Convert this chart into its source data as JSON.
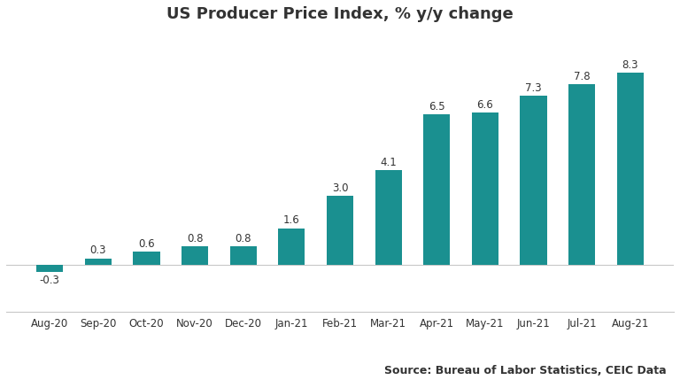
{
  "title": "US Producer Price Index, % y/y change",
  "categories": [
    "Aug-20",
    "Sep-20",
    "Oct-20",
    "Nov-20",
    "Dec-20",
    "Jan-21",
    "Feb-21",
    "Mar-21",
    "Apr-21",
    "May-21",
    "Jun-21",
    "Jul-21",
    "Aug-21"
  ],
  "values": [
    -0.3,
    0.3,
    0.6,
    0.8,
    0.8,
    1.6,
    3.0,
    4.1,
    6.5,
    6.6,
    7.3,
    7.8,
    8.3
  ],
  "bar_color": "#1a9090",
  "label_color": "#333333",
  "background_color": "#ffffff",
  "grid_color": "#c8c8c8",
  "source_text": "Source: Bureau of Labor Statistics, CEIC Data",
  "ylim_min": -2.0,
  "ylim_max": 10.0,
  "yticks": [
    -2,
    -1,
    0,
    1,
    2,
    3,
    4,
    5,
    6,
    7,
    8,
    9,
    10
  ],
  "title_fontsize": 13,
  "label_fontsize": 8.5,
  "tick_fontsize": 8.5,
  "source_fontsize": 9,
  "bar_width": 0.55
}
